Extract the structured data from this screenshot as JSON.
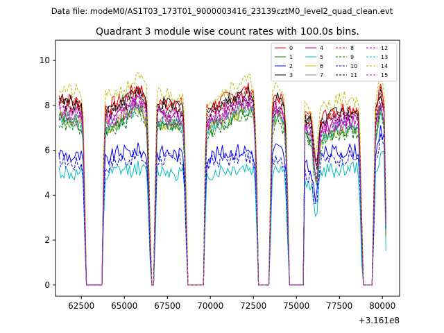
{
  "figure": {
    "suptitle": "Data file: modeM0/AS1T03_173T01_9000003416_23139cztM0_level2_quad_clean.evt"
  },
  "chart_data": {
    "type": "line",
    "title": "Quadrant 3 module wise count rates with 100.0s bins.",
    "xlabel": "",
    "ylabel": "",
    "offset_label": "+3.161e8",
    "xlim": [
      61000,
      81000
    ],
    "ylim": [
      -0.5,
      10.9
    ],
    "xticks": [
      62500,
      65000,
      67500,
      70000,
      72500,
      75000,
      77500,
      80000
    ],
    "yticks": [
      0,
      2,
      4,
      6,
      8,
      10
    ],
    "grid": false,
    "legend_position": "top-right",
    "series_templates": {
      "high": {
        "description": "approximate shared count-rate envelope (counts/s) for the bright modules",
        "points": [
          [
            61200,
            7.8
          ],
          [
            61500,
            7.7
          ],
          [
            62000,
            7.6
          ],
          [
            62500,
            7.5
          ],
          [
            62650,
            6.5
          ],
          [
            62750,
            0.0
          ],
          [
            63700,
            0.0
          ],
          [
            63850,
            7.3
          ],
          [
            64200,
            7.4
          ],
          [
            64700,
            7.6
          ],
          [
            65200,
            7.8
          ],
          [
            65700,
            8.2
          ],
          [
            66000,
            8.1
          ],
          [
            66300,
            7.6
          ],
          [
            66400,
            5.2
          ],
          [
            66550,
            0.0
          ],
          [
            66750,
            0.0
          ],
          [
            66850,
            7.3
          ],
          [
            67000,
            7.6
          ],
          [
            67500,
            7.5
          ],
          [
            68000,
            7.5
          ],
          [
            68400,
            7.4
          ],
          [
            68550,
            5.5
          ],
          [
            68650,
            0.0
          ],
          [
            69600,
            0.0
          ],
          [
            69750,
            7.2
          ],
          [
            70200,
            7.4
          ],
          [
            70700,
            7.6
          ],
          [
            71200,
            7.8
          ],
          [
            71700,
            8.0
          ],
          [
            72200,
            8.1
          ],
          [
            72500,
            8.0
          ],
          [
            72650,
            6.0
          ],
          [
            72800,
            0.0
          ],
          [
            73450,
            0.0
          ],
          [
            73550,
            7.2
          ],
          [
            73800,
            7.8
          ],
          [
            74100,
            7.7
          ],
          [
            74350,
            7.2
          ],
          [
            74450,
            5.0
          ],
          [
            74600,
            0.0
          ],
          [
            75400,
            0.0
          ],
          [
            75500,
            7.0
          ],
          [
            75900,
            6.8
          ],
          [
            76050,
            5.2
          ],
          [
            76200,
            5.0
          ],
          [
            76400,
            6.8
          ],
          [
            76800,
            7.0
          ],
          [
            77300,
            7.2
          ],
          [
            77800,
            7.3
          ],
          [
            78300,
            7.3
          ],
          [
            78600,
            7.2
          ],
          [
            78750,
            4.5
          ],
          [
            78850,
            0.0
          ],
          [
            79450,
            0.0
          ],
          [
            79550,
            6.8
          ],
          [
            79700,
            7.4
          ],
          [
            79900,
            8.2
          ],
          [
            80100,
            7.5
          ],
          [
            80250,
            0.3
          ]
        ]
      },
      "low": {
        "description": "approximate shared count-rate envelope (counts/s) for the dim modules",
        "points": [
          [
            61200,
            5.6
          ],
          [
            61500,
            5.5
          ],
          [
            62000,
            5.4
          ],
          [
            62500,
            5.4
          ],
          [
            62650,
            4.8
          ],
          [
            62750,
            0.0
          ],
          [
            63700,
            0.0
          ],
          [
            63850,
            5.2
          ],
          [
            64200,
            5.4
          ],
          [
            64700,
            5.6
          ],
          [
            65200,
            5.6
          ],
          [
            65700,
            5.7
          ],
          [
            66000,
            5.7
          ],
          [
            66300,
            5.4
          ],
          [
            66400,
            3.9
          ],
          [
            66550,
            0.0
          ],
          [
            66750,
            0.0
          ],
          [
            66850,
            5.5
          ],
          [
            67000,
            5.6
          ],
          [
            67500,
            5.6
          ],
          [
            68000,
            5.5
          ],
          [
            68400,
            5.5
          ],
          [
            68550,
            4.0
          ],
          [
            68650,
            0.0
          ],
          [
            69600,
            0.0
          ],
          [
            69750,
            5.3
          ],
          [
            70200,
            5.5
          ],
          [
            70700,
            5.6
          ],
          [
            71200,
            5.6
          ],
          [
            71700,
            5.7
          ],
          [
            72200,
            5.7
          ],
          [
            72500,
            5.6
          ],
          [
            72650,
            4.5
          ],
          [
            72800,
            0.0
          ],
          [
            73450,
            0.0
          ],
          [
            73550,
            5.4
          ],
          [
            73800,
            5.8
          ],
          [
            74100,
            5.7
          ],
          [
            74350,
            5.4
          ],
          [
            74450,
            3.8
          ],
          [
            74600,
            0.0
          ],
          [
            75400,
            0.0
          ],
          [
            75500,
            5.0
          ],
          [
            75900,
            4.7
          ],
          [
            76050,
            3.6
          ],
          [
            76200,
            4.0
          ],
          [
            76400,
            5.5
          ],
          [
            76800,
            5.6
          ],
          [
            77300,
            5.6
          ],
          [
            77800,
            5.7
          ],
          [
            78300,
            5.7
          ],
          [
            78600,
            5.6
          ],
          [
            78750,
            3.5
          ],
          [
            78850,
            0.0
          ],
          [
            79450,
            0.0
          ],
          [
            79550,
            5.2
          ],
          [
            79700,
            5.6
          ],
          [
            79900,
            6.5
          ],
          [
            80100,
            6.2
          ],
          [
            80250,
            0.3
          ]
        ]
      }
    },
    "series": [
      {
        "name": "0",
        "color": "#ff0000",
        "dash": "solid",
        "template": "high",
        "offset": 0.6
      },
      {
        "name": "1",
        "color": "#008000",
        "dash": "solid",
        "template": "high",
        "offset": -0.4
      },
      {
        "name": "2",
        "color": "#0000ff",
        "dash": "solid",
        "template": "low",
        "offset": 0.3
      },
      {
        "name": "3",
        "color": "#000000",
        "dash": "solid",
        "template": "high",
        "offset": 0.5
      },
      {
        "name": "4",
        "color": "#bf00bf",
        "dash": "solid",
        "template": "high",
        "offset": 0.1
      },
      {
        "name": "5",
        "color": "#00bfbf",
        "dash": "solid",
        "template": "low",
        "offset": -0.5
      },
      {
        "name": "6",
        "color": "#bfbf00",
        "dash": "solid",
        "template": "high",
        "offset": -0.3
      },
      {
        "name": "7",
        "color": "#808080",
        "dash": "solid",
        "template": "high",
        "offset": -0.2
      },
      {
        "name": "8",
        "color": "#ff0000",
        "dash": "dashed",
        "template": "high",
        "offset": 0.4
      },
      {
        "name": "9",
        "color": "#008000",
        "dash": "dashed",
        "template": "high",
        "offset": -0.5
      },
      {
        "name": "10",
        "color": "#0000ff",
        "dash": "dashed",
        "template": "low",
        "offset": 0.0
      },
      {
        "name": "11",
        "color": "#000000",
        "dash": "dashed",
        "template": "high",
        "offset": 0.3
      },
      {
        "name": "12",
        "color": "#bf00bf",
        "dash": "dashed",
        "template": "high",
        "offset": 0.0
      },
      {
        "name": "13",
        "color": "#00bfbf",
        "dash": "dashed",
        "template": "high",
        "offset": -0.3
      },
      {
        "name": "14",
        "color": "#bfbf00",
        "dash": "dashed",
        "template": "high",
        "offset": 1.0
      },
      {
        "name": "15",
        "color": "#bf00bf",
        "dash": "dashed",
        "template": "high",
        "offset": -0.1
      }
    ]
  }
}
